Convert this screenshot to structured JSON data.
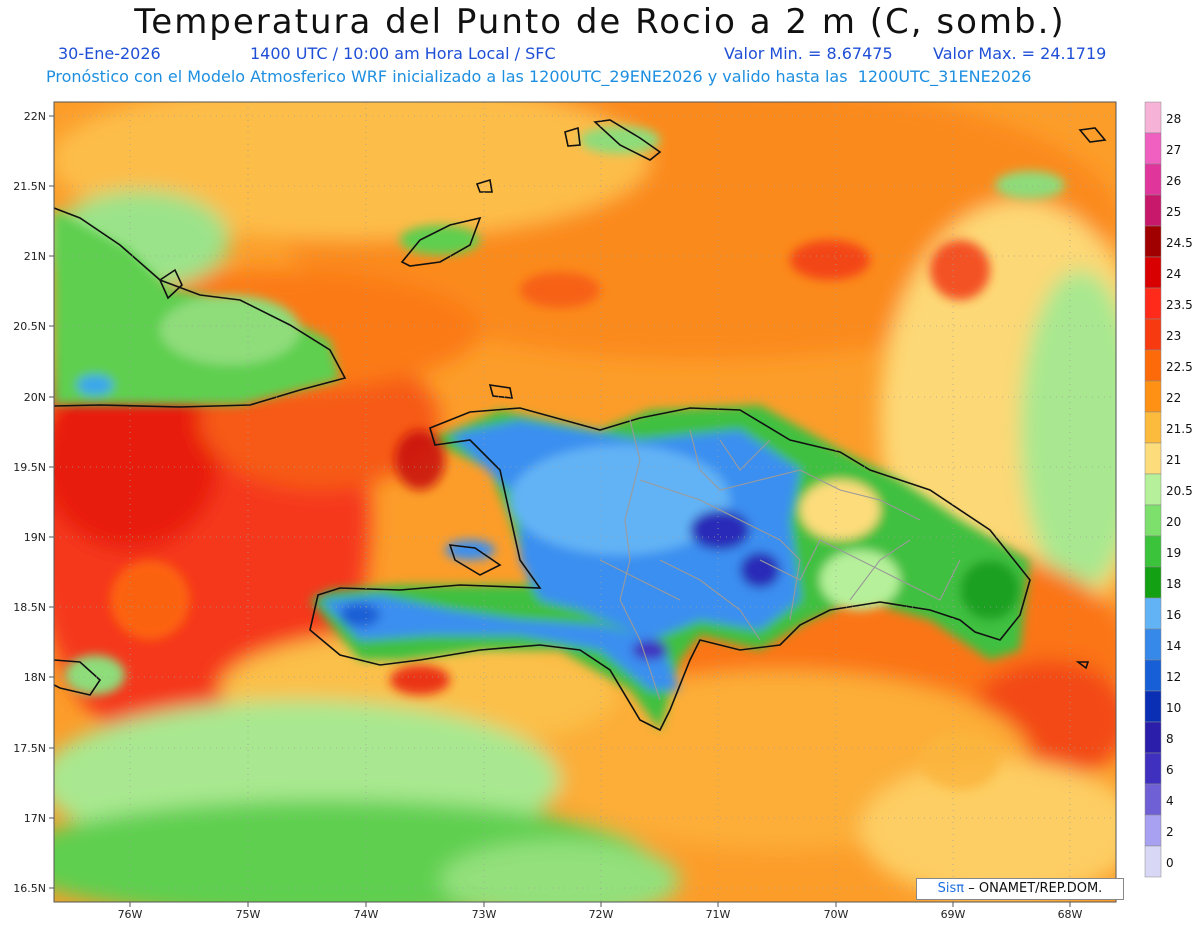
{
  "header": {
    "title": "Temperatura del Punto de Rocio a 2 m (C, somb.)",
    "date": "30-Ene-2026",
    "time": "1400 UTC / 10:00 am Hora Local / SFC",
    "min": "Valor Min. = 8.67475",
    "max": "Valor Max. = 24.1719",
    "model": "Pronóstico con el Modelo Atmosferico WRF inicializado a las 1200UTC_29ENE2026 y valido hasta las  1200UTC_31ENE2026"
  },
  "map": {
    "lat_labels": [
      "22N",
      "21.5N",
      "21N",
      "20.5N",
      "20N",
      "19.5N",
      "19N",
      "18.5N",
      "18N",
      "17.5N",
      "17N",
      "16.5N"
    ],
    "lon_labels": [
      "76W",
      "75W",
      "74W",
      "73W",
      "72W",
      "71W",
      "70W",
      "69W",
      "68W"
    ],
    "coastline_color": "#111111",
    "border_color": "#9a9a9a"
  },
  "colorbar": {
    "labels": [
      "28",
      "27",
      "26",
      "25",
      "24.5",
      "24",
      "23.5",
      "23",
      "22.5",
      "22",
      "21.5",
      "21",
      "20.5",
      "20",
      "19",
      "18",
      "16",
      "14",
      "12",
      "10",
      "8",
      "6",
      "4",
      "2",
      "0"
    ],
    "colors": [
      "#f7b2d8",
      "#f060c0",
      "#e0369c",
      "#c8186c",
      "#a00000",
      "#d80000",
      "#ff2a1a",
      "#f83a10",
      "#fd6a0a",
      "#ff9214",
      "#fdbb3d",
      "#fddc7c",
      "#b6f09a",
      "#7ddf6c",
      "#3cc33c",
      "#13a013",
      "#62b3f5",
      "#3689e8",
      "#165fd6",
      "#0b2fb4",
      "#2a1eaa",
      "#4030bf",
      "#7060d6",
      "#a8a0f0",
      "#d8d8f6"
    ]
  },
  "credit": {
    "brand": "Sisπ",
    "text": "– ONAMET/REP.DOM."
  }
}
